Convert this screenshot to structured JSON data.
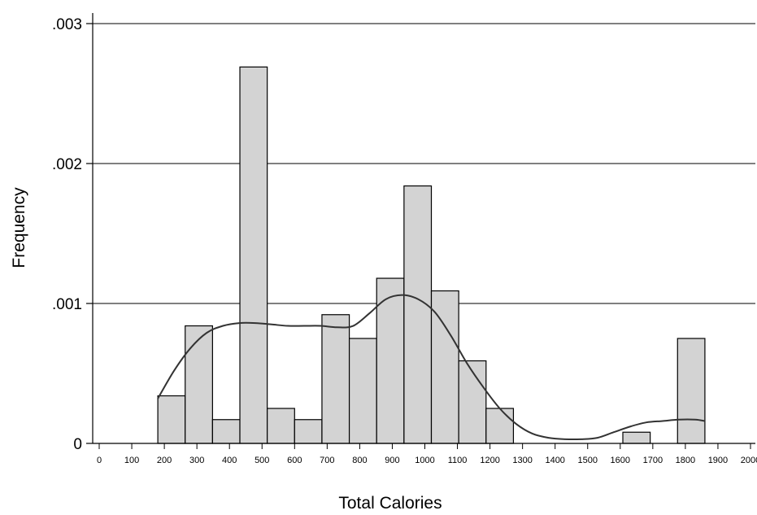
{
  "chart_data": {
    "type": "bar",
    "xlabel": "Total Calories",
    "ylabel": "Frequency",
    "xlim": [
      -20,
      2015
    ],
    "ylim": [
      0,
      0.003
    ],
    "xticks": [
      0,
      100,
      200,
      300,
      400,
      500,
      600,
      700,
      800,
      900,
      1000,
      1100,
      1200,
      1300,
      1400,
      1500,
      1600,
      1700,
      1800,
      1900,
      2000
    ],
    "xtick_labels": [
      "0",
      "100",
      "200",
      "300",
      "400",
      "500",
      "600",
      "700",
      "800",
      "900",
      "1000",
      "1100",
      "1200",
      "1300",
      "1400",
      "1500",
      "1600",
      "1700",
      "1800",
      "1900",
      "2000"
    ],
    "yticks": [
      0,
      0.001,
      0.002,
      0.003
    ],
    "ytick_labels": [
      "0",
      ".001",
      ".002",
      ".003"
    ],
    "grid": "horizontal",
    "bin_edges": [
      180,
      264,
      348,
      432,
      516,
      600,
      684,
      768,
      852,
      936,
      1020,
      1104,
      1188,
      1272,
      1356,
      1440,
      1524,
      1608,
      1692,
      1776,
      1860
    ],
    "values": [
      0.00034,
      0.00084,
      0.00017,
      0.00269,
      0.00025,
      0.00017,
      0.00092,
      0.00075,
      0.00118,
      0.00184,
      0.00109,
      0.00059,
      0.00025,
      0,
      0,
      0,
      0,
      8e-05,
      0,
      0.00075
    ],
    "density_curve": {
      "x": [
        180,
        230,
        280,
        330,
        380,
        430,
        480,
        530,
        580,
        630,
        680,
        730,
        780,
        830,
        880,
        930,
        980,
        1030,
        1080,
        1130,
        1180,
        1230,
        1280,
        1330,
        1380,
        1430,
        1480,
        1530,
        1580,
        1630,
        1680,
        1730,
        1780,
        1830,
        1860
      ],
      "y": [
        0.00032,
        0.00052,
        0.00068,
        0.00079,
        0.00084,
        0.00086,
        0.00086,
        0.00085,
        0.00084,
        0.00084,
        0.00084,
        0.00083,
        0.00084,
        0.00093,
        0.00103,
        0.00106,
        0.00103,
        0.00094,
        0.00077,
        0.00057,
        0.0004,
        0.00025,
        0.00014,
        7e-05,
        4e-05,
        3e-05,
        3e-05,
        4e-05,
        8e-05,
        0.00012,
        0.00015,
        0.00016,
        0.00017,
        0.00017,
        0.00016
      ]
    },
    "colors": {
      "bar_fill": "#d3d3d3",
      "bar_stroke": "#000000",
      "curve": "#333333",
      "grid": "#000000",
      "axis": "#000000"
    }
  }
}
